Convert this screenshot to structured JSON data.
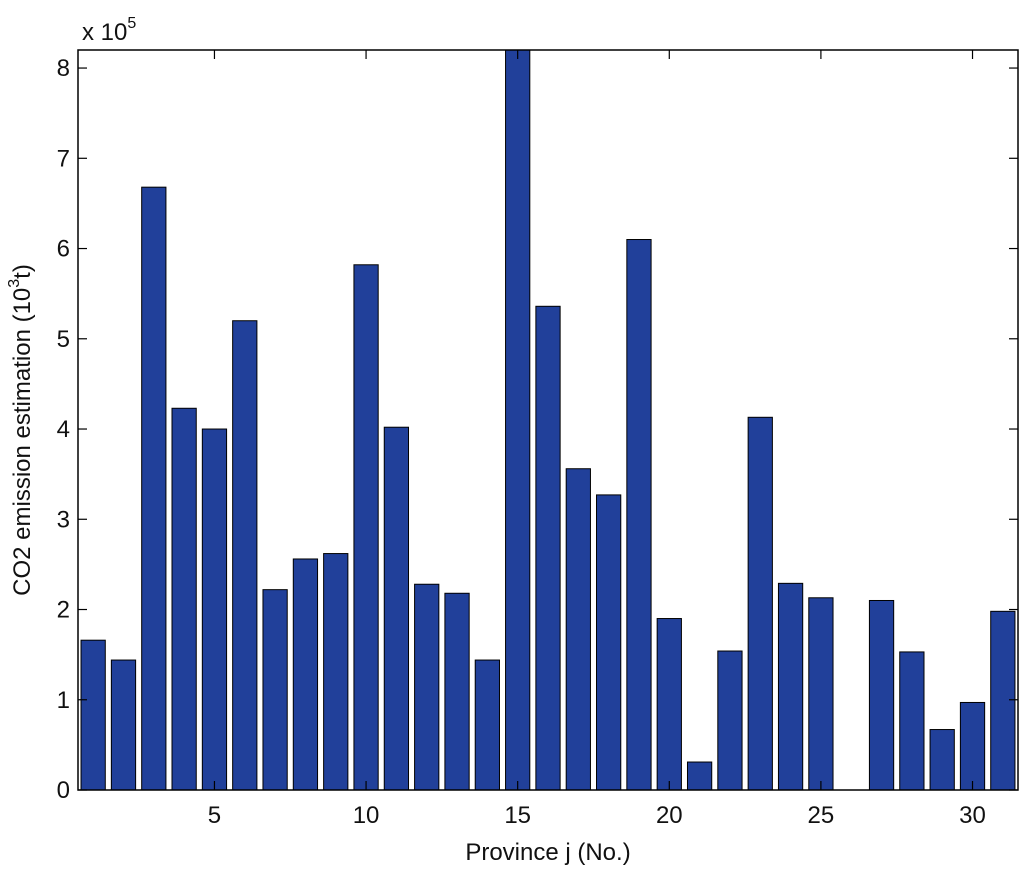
{
  "chart_data": {
    "type": "bar",
    "xlabel": "Province j (No.)",
    "ylabel_main": "CO2 emission estimation (10",
    "ylabel_sup": "3",
    "ylabel_end": "t)",
    "scale_prefix": "x 10",
    "scale_exponent": "5",
    "bar_color": "#21409a",
    "xlim": [
      0.5,
      31.5
    ],
    "ylim": [
      0,
      8.2
    ],
    "xticks": [
      5,
      10,
      15,
      20,
      25,
      30
    ],
    "yticks": [
      0,
      1,
      2,
      3,
      4,
      5,
      6,
      7,
      8
    ],
    "categories": [
      1,
      2,
      3,
      4,
      5,
      6,
      7,
      8,
      9,
      10,
      11,
      12,
      13,
      14,
      15,
      16,
      17,
      18,
      19,
      20,
      21,
      22,
      23,
      24,
      25,
      26,
      27,
      28,
      29,
      30,
      31
    ],
    "values": [
      1.66,
      1.44,
      6.68,
      4.23,
      4.0,
      5.2,
      2.22,
      2.56,
      2.62,
      5.82,
      4.02,
      2.28,
      2.18,
      1.44,
      8.2,
      5.36,
      3.56,
      3.27,
      6.1,
      1.9,
      0.31,
      1.54,
      4.13,
      2.29,
      2.13,
      0,
      2.1,
      1.53,
      0.67,
      0.97,
      1.98
    ],
    "grid": false
  }
}
